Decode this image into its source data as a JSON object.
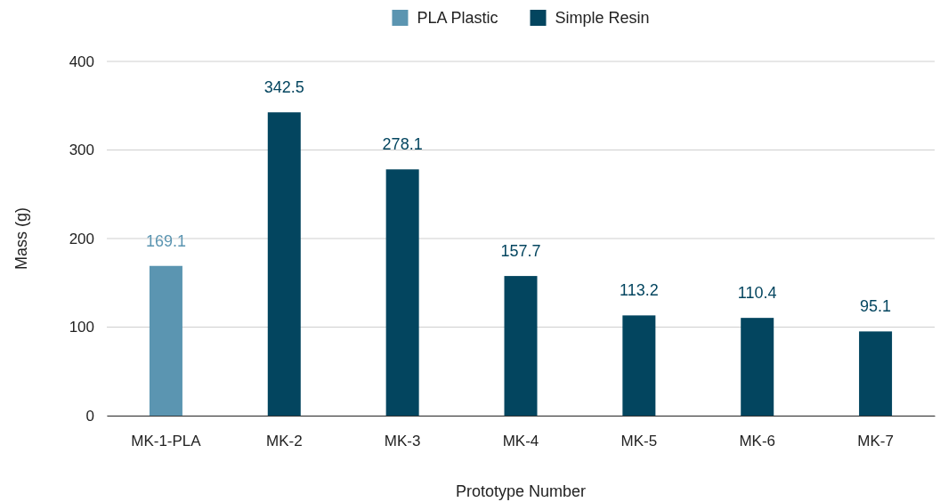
{
  "chart_data": {
    "type": "bar",
    "xlabel": "Prototype Number",
    "ylabel": "Mass (g)",
    "categories": [
      "MK-1-PLA",
      "MK-2",
      "MK-3",
      "MK-4",
      "MK-5",
      "MK-6",
      "MK-7"
    ],
    "series": [
      {
        "name": "PLA Plastic",
        "color": "#5b95b1",
        "values": [
          169.1,
          null,
          null,
          null,
          null,
          null,
          null
        ]
      },
      {
        "name": "Simple Resin",
        "color": "#03455f",
        "values": [
          null,
          342.5,
          278.1,
          157.7,
          113.2,
          110.4,
          95.1
        ]
      }
    ],
    "ylim": [
      0,
      400
    ],
    "yticks": [
      0,
      100,
      200,
      300,
      400
    ],
    "grid": "y",
    "legend": "top",
    "data_labels": true
  }
}
